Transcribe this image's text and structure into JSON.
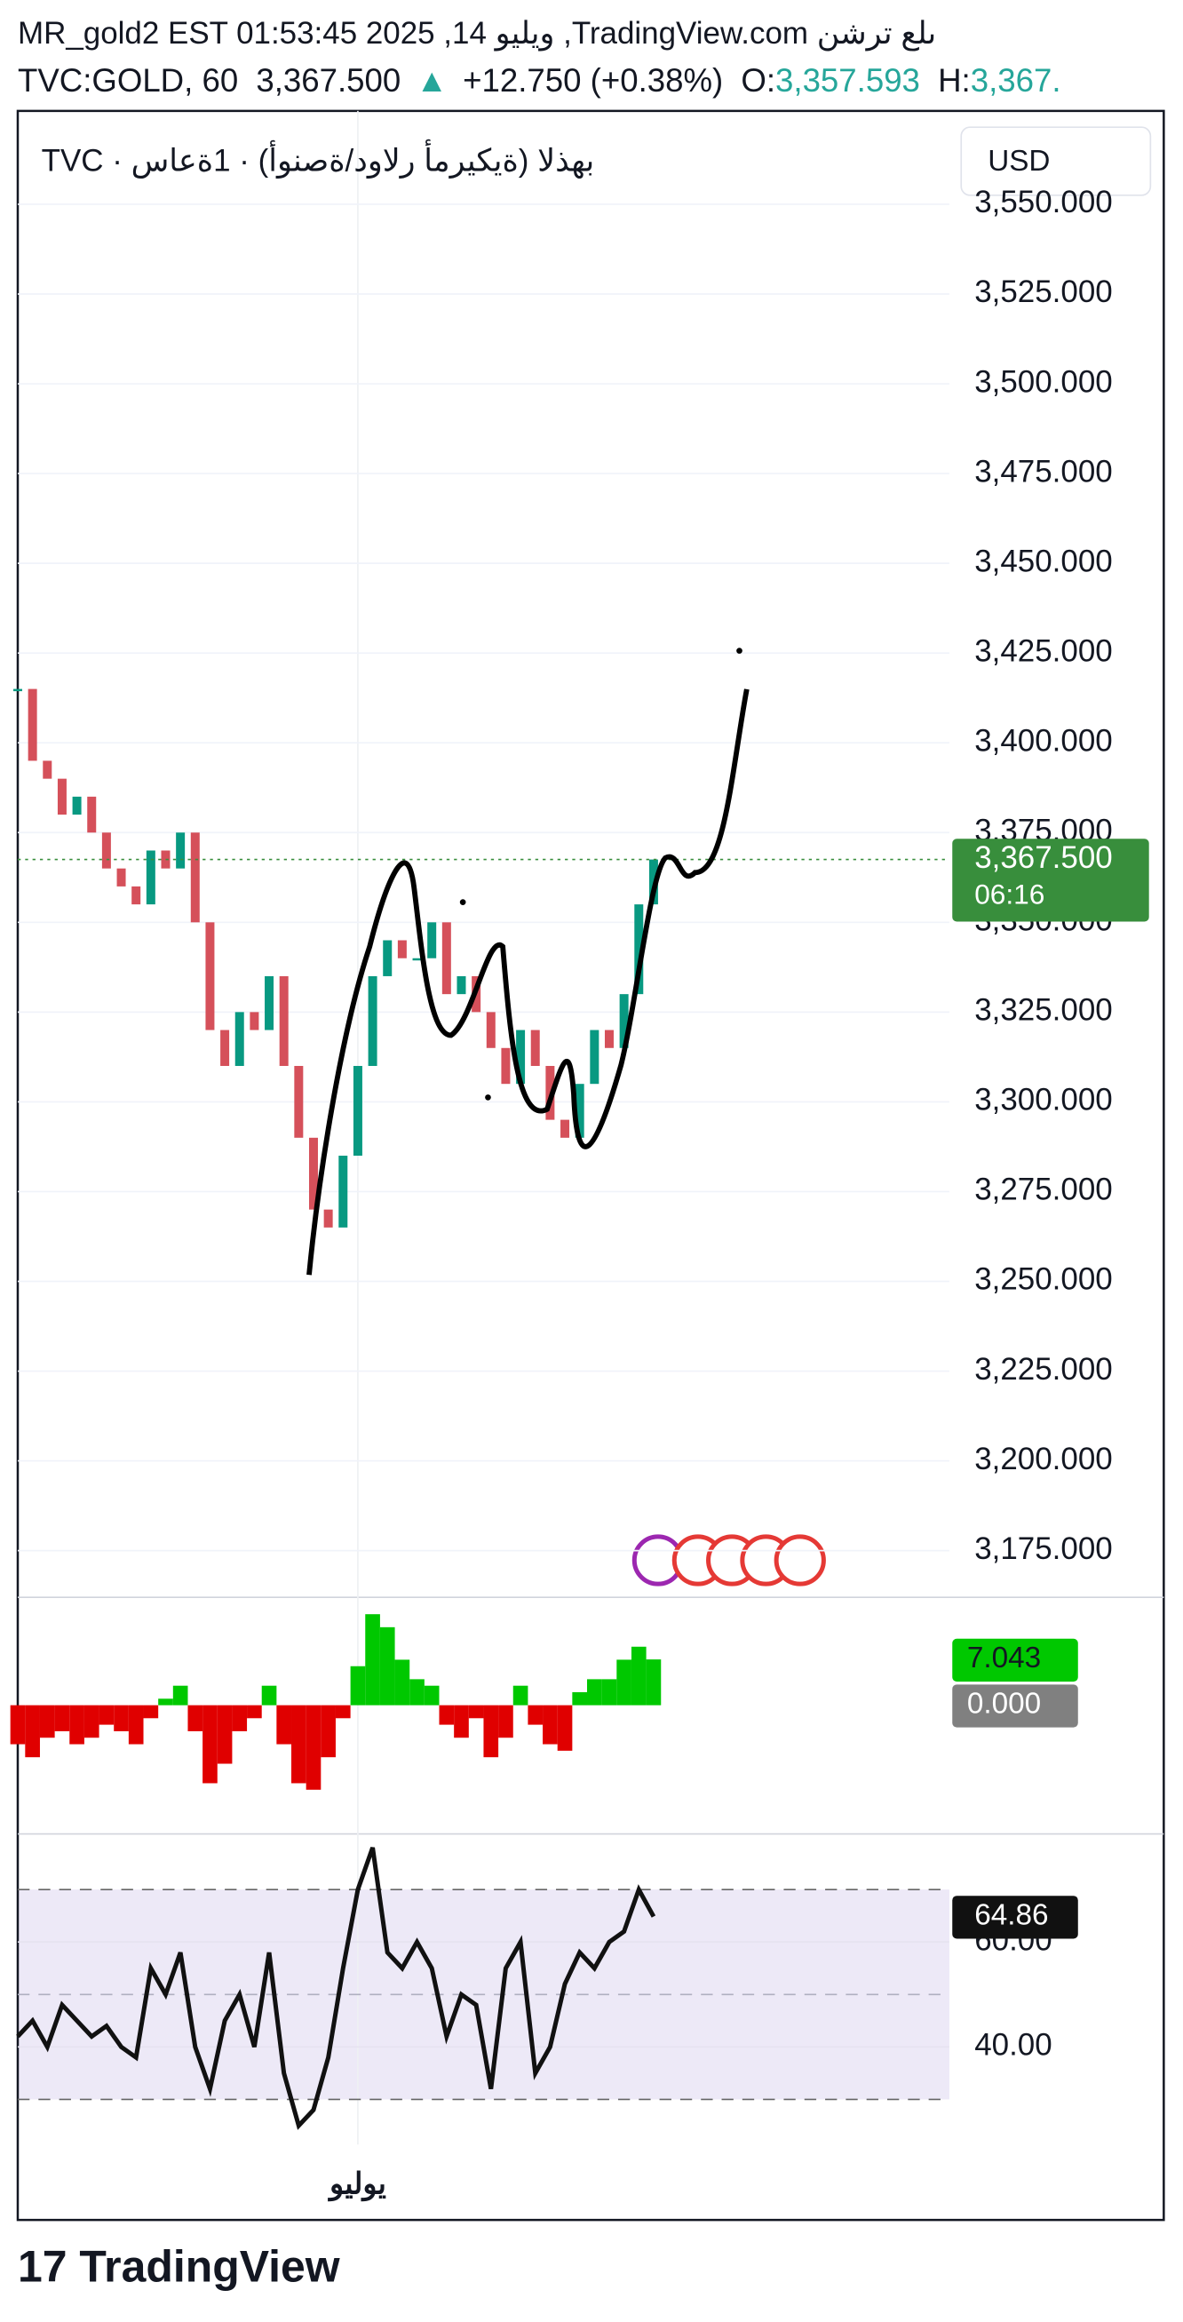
{
  "header": {
    "line1": "MR_gold2 EST 01:53:45 2025 ,14 ويليو ,TradingView.com ىلع ترشن",
    "symbol": "TVC:GOLD, 60",
    "price": "3,367.500",
    "change": "+12.750 (+0.38%)",
    "open_label": "O:",
    "open": "3,357.593",
    "high_label": "H:",
    "high": "3,367.",
    "legend": "TVC · بهذلا (ةيكيرمأ رلاود/ةصنوأ) · 1ةعاس",
    "currency": "USD",
    "x_label": "يوليو",
    "brand": "TradingView"
  },
  "chart_data": [
    {
      "type": "candles",
      "color_up": "#089981",
      "color_down": "#d5505a",
      "values": [
        3415,
        3395,
        3390,
        3380,
        3385,
        3375,
        3365,
        3360,
        3355,
        3370,
        3365,
        3375,
        3350,
        3320,
        3310,
        3325,
        3320,
        3335,
        3310,
        3290,
        3270,
        3265,
        3285,
        3310,
        3335,
        3345,
        3340,
        3340,
        3350,
        3330,
        3335,
        3325,
        3315,
        3305,
        3320,
        3310,
        3295,
        3290,
        3305,
        3320,
        3315,
        3330,
        3355,
        3367.5
      ],
      "last_value_label": "3,367.500",
      "countdown": "06:16",
      "last_color": "#388e3c",
      "ylim": [
        3162,
        3576
      ],
      "yticks": [
        {
          "value": 3175,
          "label": "3,175.000"
        },
        {
          "value": 3200,
          "label": "3,200.000"
        },
        {
          "value": 3225,
          "label": "3,225.000"
        },
        {
          "value": 3250,
          "label": "3,250.000"
        },
        {
          "value": 3275,
          "label": "3,275.000"
        },
        {
          "value": 3300,
          "label": "3,300.000"
        },
        {
          "value": 3325,
          "label": "3,325.000"
        },
        {
          "value": 3350,
          "label": "3,350.000"
        },
        {
          "value": 3375,
          "label": "3,375.000"
        },
        {
          "value": 3400,
          "label": "3,400.000"
        },
        {
          "value": 3425,
          "label": "3,425.000"
        },
        {
          "value": 3450,
          "label": "3,450.000"
        },
        {
          "value": 3475,
          "label": "3,475.000"
        },
        {
          "value": 3500,
          "label": "3,500.000"
        },
        {
          "value": 3525,
          "label": "3,525.000"
        },
        {
          "value": 3550,
          "label": "3,550.000"
        }
      ],
      "grid": true
    },
    {
      "type": "histogram",
      "color_up": "#00c800",
      "color_down": "#e00000",
      "values": [
        -6,
        -8,
        -5,
        -4,
        -6,
        -5,
        -3,
        -4,
        -6,
        -2,
        1,
        3,
        -4,
        -12,
        -9,
        -4,
        -2,
        3,
        -6,
        -12,
        -13,
        -8,
        -2,
        6,
        14,
        12,
        7,
        4,
        3,
        -3,
        -5,
        -2,
        -8,
        -5,
        3,
        -3,
        -6,
        -7,
        2,
        4,
        4,
        7,
        9,
        7.043
      ],
      "ylim": [
        -19.8,
        16.6
      ],
      "yticks": [
        {
          "value": 0,
          "label": "0.000"
        }
      ]
    },
    {
      "type": "line",
      "color": "#111111",
      "band_color": "#ede9f7",
      "values": [
        42,
        45,
        40,
        48,
        45,
        42,
        44,
        40,
        38,
        55,
        50,
        58,
        40,
        32,
        45,
        50,
        40,
        58,
        35,
        25,
        28,
        38,
        55,
        70,
        78,
        58,
        55,
        60,
        55,
        42,
        50,
        48,
        32,
        55,
        60,
        35,
        40,
        52,
        58,
        55,
        60,
        62,
        70,
        64.86
      ],
      "ylim": [
        21.4,
        80.6
      ],
      "yticks": [
        {
          "value": 40,
          "label": "40.00"
        },
        {
          "value": 60,
          "label": "60.00"
        }
      ],
      "bands": [
        30,
        50,
        70
      ]
    }
  ]
}
